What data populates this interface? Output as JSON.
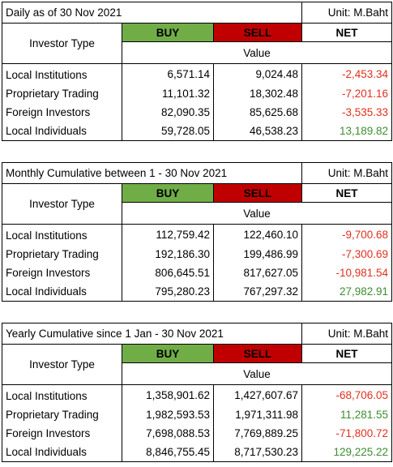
{
  "colors": {
    "buy": "#70ad47",
    "sell": "#c00000",
    "negative": "#e0301e",
    "positive": "#3c8d2f"
  },
  "tables": [
    {
      "title": "Daily as of 30 Nov 2021",
      "unit": "Unit: M.Baht",
      "investor_type_header": "Investor Type",
      "buy_header": "BUY",
      "sell_header": "SELL",
      "net_header": "NET",
      "value_header": "Value",
      "rows": [
        {
          "name": "Local Institutions",
          "buy": "6,571.14",
          "sell": "9,024.48",
          "net": "-2,453.34",
          "sign": "neg"
        },
        {
          "name": "Proprietary Trading",
          "buy": "11,101.32",
          "sell": "18,302.48",
          "net": "-7,201.16",
          "sign": "neg"
        },
        {
          "name": "Foreign Investors",
          "buy": "82,090.35",
          "sell": "85,625.68",
          "net": "-3,535.33",
          "sign": "neg"
        },
        {
          "name": "Local Individuals",
          "buy": "59,728.05",
          "sell": "46,538.23",
          "net": "13,189.82",
          "sign": "pos"
        }
      ]
    },
    {
      "title": "Monthly Cumulative between 1 - 30 Nov 2021",
      "unit": "Unit: M.Baht",
      "investor_type_header": "Investor Type",
      "buy_header": "BUY",
      "sell_header": "SELL",
      "net_header": "NET",
      "value_header": "Value",
      "rows": [
        {
          "name": "Local Institutions",
          "buy": "112,759.42",
          "sell": "122,460.10",
          "net": "-9,700.68",
          "sign": "neg"
        },
        {
          "name": "Proprietary Trading",
          "buy": "192,186.30",
          "sell": "199,486.99",
          "net": "-7,300.69",
          "sign": "neg"
        },
        {
          "name": "Foreign Investors",
          "buy": "806,645.51",
          "sell": "817,627.05",
          "net": "-10,981.54",
          "sign": "neg"
        },
        {
          "name": "Local Individuals",
          "buy": "795,280.23",
          "sell": "767,297.32",
          "net": "27,982.91",
          "sign": "pos"
        }
      ]
    },
    {
      "title": "Yearly Cumulative since 1 Jan - 30 Nov 2021",
      "unit": "Unit: M.Baht",
      "investor_type_header": "Investor Type",
      "buy_header": "BUY",
      "sell_header": "SELL",
      "net_header": "NET",
      "value_header": "Value",
      "rows": [
        {
          "name": "Local Institutions",
          "buy": "1,358,901.62",
          "sell": "1,427,607.67",
          "net": "-68,706.05",
          "sign": "neg"
        },
        {
          "name": "Proprietary Trading",
          "buy": "1,982,593.53",
          "sell": "1,971,311.98",
          "net": "11,281.55",
          "sign": "pos"
        },
        {
          "name": "Foreign Investors",
          "buy": "7,698,088.53",
          "sell": "7,769,889.25",
          "net": "-71,800.72",
          "sign": "neg"
        },
        {
          "name": "Local Individuals",
          "buy": "8,846,755.45",
          "sell": "8,717,530.23",
          "net": "129,225.22",
          "sign": "pos"
        }
      ]
    }
  ]
}
